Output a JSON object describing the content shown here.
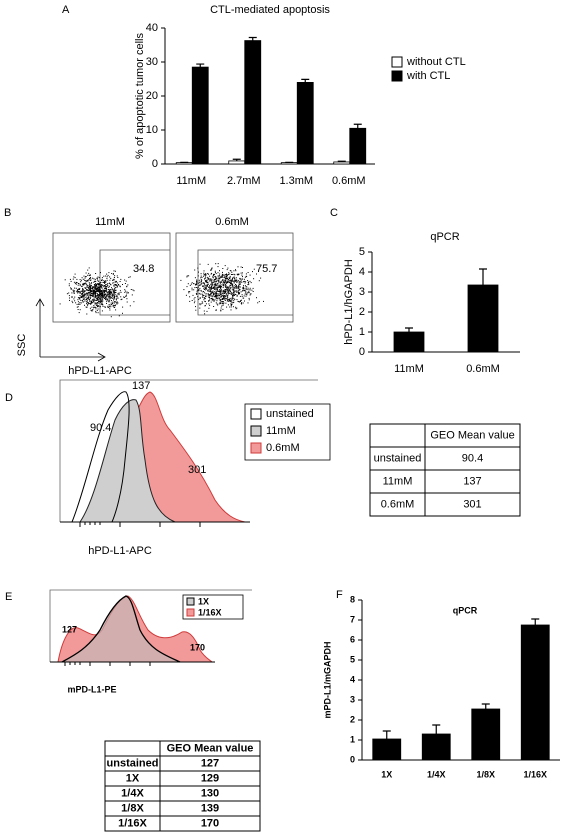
{
  "panel_labels": [
    "A",
    "B",
    "C",
    "D",
    "E",
    "F"
  ],
  "chart_data": [
    {
      "type": "bar",
      "title": "CTL-mediated apoptosis",
      "ylabel": "% of apoptotic tumor cells",
      "categories": [
        "11mM",
        "2.7mM",
        "1.3mM",
        "0.6mM"
      ],
      "series": [
        {
          "name": "without CTL",
          "color": "#ffffff",
          "values": [
            0.4,
            0.9,
            0.4,
            0.6
          ],
          "errors": [
            0.1,
            0.5,
            0.1,
            0.2
          ]
        },
        {
          "name": "with CTL",
          "color": "#000000",
          "values": [
            28.5,
            36.3,
            24,
            10.5
          ],
          "errors": [
            0.9,
            0.9,
            0.9,
            1.2
          ]
        }
      ],
      "ylim": [
        0,
        40
      ],
      "yticks": [
        0,
        10,
        20,
        30,
        40
      ],
      "legend": "right"
    },
    {
      "type": "bar",
      "title": "qPCR",
      "ylabel": "hPD-L1/hGAPDH",
      "categories": [
        "11mM",
        "0.6mM"
      ],
      "series": [
        {
          "color": "#000000",
          "values": [
            1.0,
            3.35
          ],
          "errors": [
            0.2,
            0.8
          ]
        }
      ],
      "ylim": [
        0,
        5
      ],
      "yticks": [
        0,
        1,
        2,
        3,
        4,
        5
      ]
    },
    {
      "type": "bar",
      "title": "qPCR",
      "ylabel": "mPD-L1/mGAPDH",
      "categories": [
        "1X",
        "1/4X",
        "1/8X",
        "1/16X"
      ],
      "series": [
        {
          "color": "#000000",
          "values": [
            1.05,
            1.3,
            2.55,
            6.75
          ],
          "errors": [
            0.4,
            0.45,
            0.25,
            0.3
          ]
        }
      ],
      "ylim": [
        0,
        8
      ],
      "yticks": [
        0,
        1,
        2,
        3,
        4,
        5,
        6,
        7,
        8
      ]
    }
  ],
  "flow_plots": {
    "y_axis_label": "SSC",
    "x_axis_label": "hPD-L1-APC",
    "plots": [
      {
        "title": "11mM",
        "gate": "34.8"
      },
      {
        "title": "0.6mM",
        "gate": "75.7"
      }
    ]
  },
  "histograms": [
    {
      "peak_labels": [
        "90.4",
        "137",
        "301"
      ],
      "legend": [
        "unstained",
        "11mM",
        "0.6mM"
      ],
      "x_axis_label": "hPD-L1-APC"
    },
    {
      "peak_labels": [
        "127",
        "170"
      ],
      "legend": [
        "1X",
        "1/16X"
      ],
      "x_axis_label": "mPD-L1-PE"
    }
  ],
  "tables": [
    {
      "header": "GEO Mean value",
      "rows": [
        [
          "unstained",
          "90.4"
        ],
        [
          "11mM",
          "137"
        ],
        [
          "0.6mM",
          "301"
        ]
      ]
    },
    {
      "header": "GEO Mean value",
      "rows": [
        [
          "unstained",
          "127"
        ],
        [
          "1X",
          "129"
        ],
        [
          "1/4X",
          "130"
        ],
        [
          "1/8X",
          "139"
        ],
        [
          "1/16X",
          "170"
        ]
      ]
    }
  ]
}
